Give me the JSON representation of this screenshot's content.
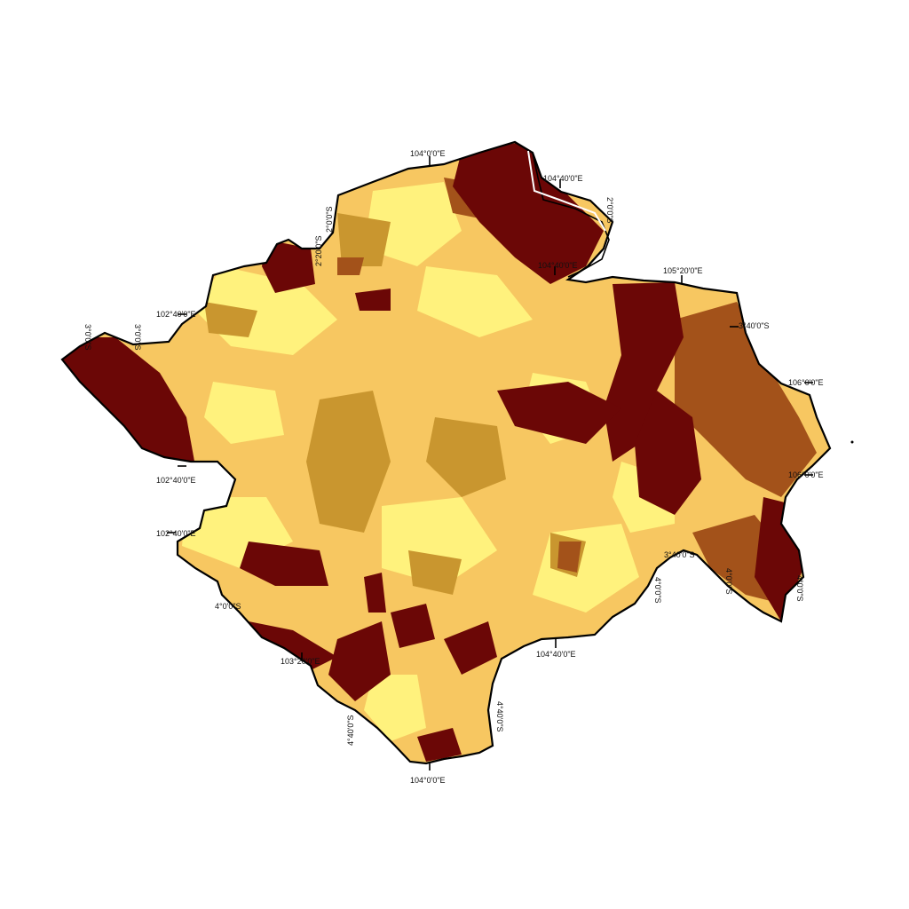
{
  "palette": {
    "class_1": "#6b0706",
    "class_2": "#a3521a",
    "class_3": "#c9962f",
    "class_4": "#f7c761",
    "class_5": "#fff27d",
    "outline": "#000000",
    "background": "#ffffff"
  },
  "graticule_labels": {
    "top_104": "104°0'0\"E",
    "top_104_40": "104°40'0\"E",
    "top_lat_2": "2°0'0\"S",
    "top_lat_2b": "2°0'0\"S",
    "top_lat_2c": "2°20'0\"S",
    "mid_104_40": "104°40'0\"E",
    "right_105_20": "105°20'0\"E",
    "right_lat_3": "3°40'0\"S",
    "right_106": "106°0'0\"E",
    "right_106b": "106°0'0\"E",
    "left_102_40": "102°40'0\"E",
    "left_lat_3": "3°0'0\"S",
    "left_lat_3b": "3°0'0\"S",
    "left_102_40b": "102°40'0\"E",
    "left_102_40c": "102°40'0\"E",
    "left_lat_4": "4°0'0\"S",
    "bottom_103_20": "103°20'0\"E",
    "bottom_104_40": "104°40'0\"E",
    "bottom_lat_4": "4°40'0\"S",
    "bottom_lat_4b": "4°40'0\"S",
    "bottom_104": "104°0'0\"E",
    "right_lat_4": "4°0'0\"S",
    "right_lat_4b": "4°0'0\"S",
    "right_lat_4c": "4°0'0\"S",
    "right_lat_4d": "3°40'0\"S"
  }
}
